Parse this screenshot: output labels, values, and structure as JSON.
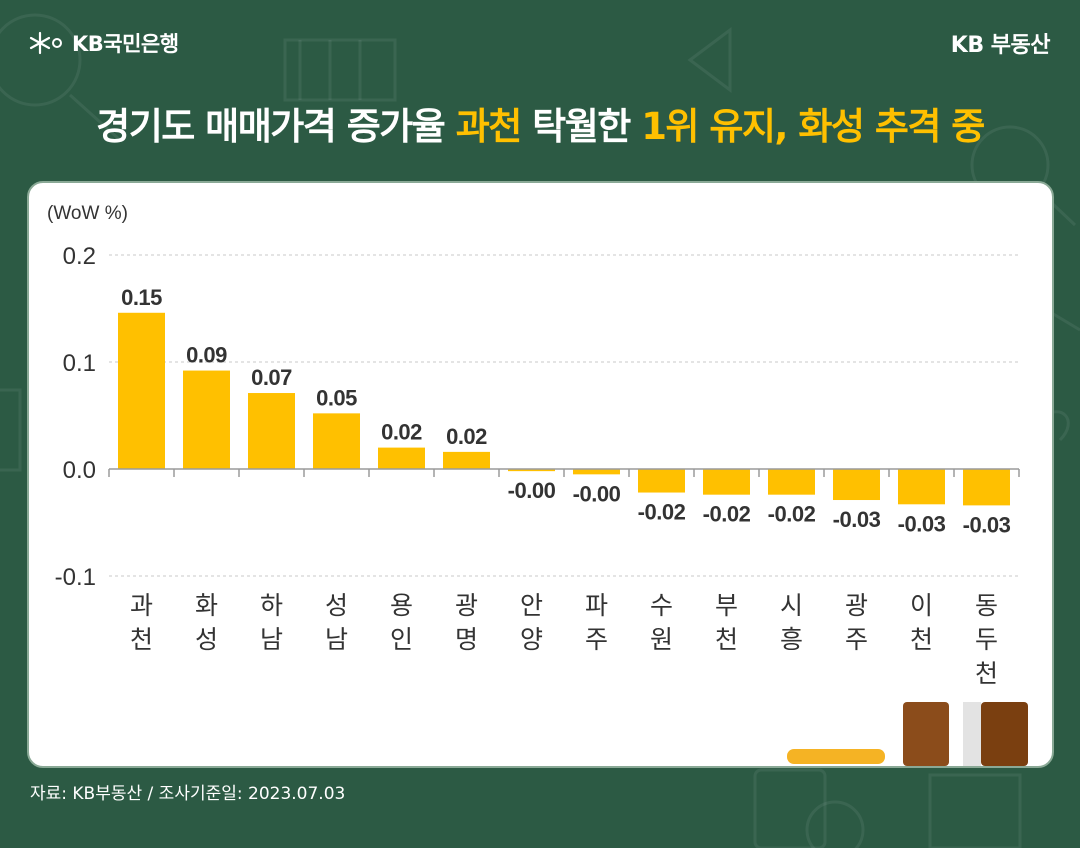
{
  "header": {
    "logo_label": "KB국민은행",
    "brand": "KB 부동산"
  },
  "headline": {
    "part1": "경기도 매매가격 증가율 ",
    "part2": "과천",
    "part3": " 탁월한 ",
    "part4": "1위 유지, 화성 추격 중"
  },
  "colors": {
    "background": "#2c5a44",
    "accent": "#ffc000",
    "bar": "#ffc000"
  },
  "chart_data": {
    "type": "bar",
    "unit_label": "(WoW %)",
    "categories": [
      "과천",
      "화성",
      "하남",
      "성남",
      "용인",
      "광명",
      "안양",
      "파주",
      "수원",
      "부천",
      "시흥",
      "광주",
      "이천",
      "동두천"
    ],
    "values": [
      0.146,
      0.092,
      0.071,
      0.052,
      0.02,
      0.016,
      -0.002,
      -0.005,
      -0.022,
      -0.024,
      -0.024,
      -0.029,
      -0.033,
      -0.034
    ],
    "value_labels": [
      "0.15",
      "0.09",
      "0.07",
      "0.05",
      "0.02",
      "0.02",
      "-0.00",
      "-0.00",
      "-0.02",
      "-0.02",
      "-0.02",
      "-0.03",
      "-0.03",
      "-0.03"
    ],
    "yticks": [
      "0.2",
      "0.1",
      "0.0",
      "-0.1"
    ],
    "ytick_values": [
      0.2,
      0.1,
      0.0,
      -0.1
    ],
    "ylim": [
      -0.1,
      0.2
    ],
    "grid": true
  },
  "footer": {
    "source": "자료: KB부동산 / 조사기준일: 2023.07.03"
  }
}
